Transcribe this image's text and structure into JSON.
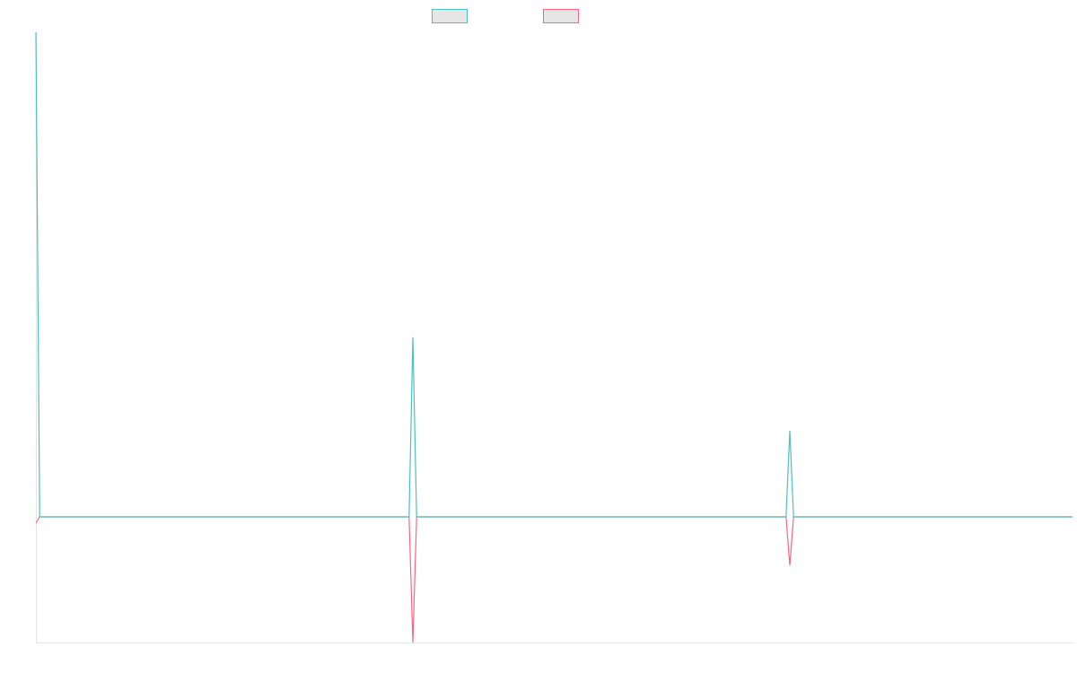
{
  "chart_data": {
    "type": "line",
    "x": [
      0,
      1,
      99,
      100,
      101,
      199,
      200,
      201,
      275
    ],
    "xlim": [
      0,
      275
    ],
    "ylim": [
      -14,
      54
    ],
    "series": [
      {
        "color": "#4bc0c0",
        "values": [
          54,
          0,
          0,
          20,
          0,
          0,
          9.6,
          0,
          0
        ]
      },
      {
        "color": "#ff6384",
        "values": [
          -0.7,
          0,
          0,
          -14,
          0,
          0,
          -5.4,
          0,
          0
        ]
      }
    ]
  }
}
